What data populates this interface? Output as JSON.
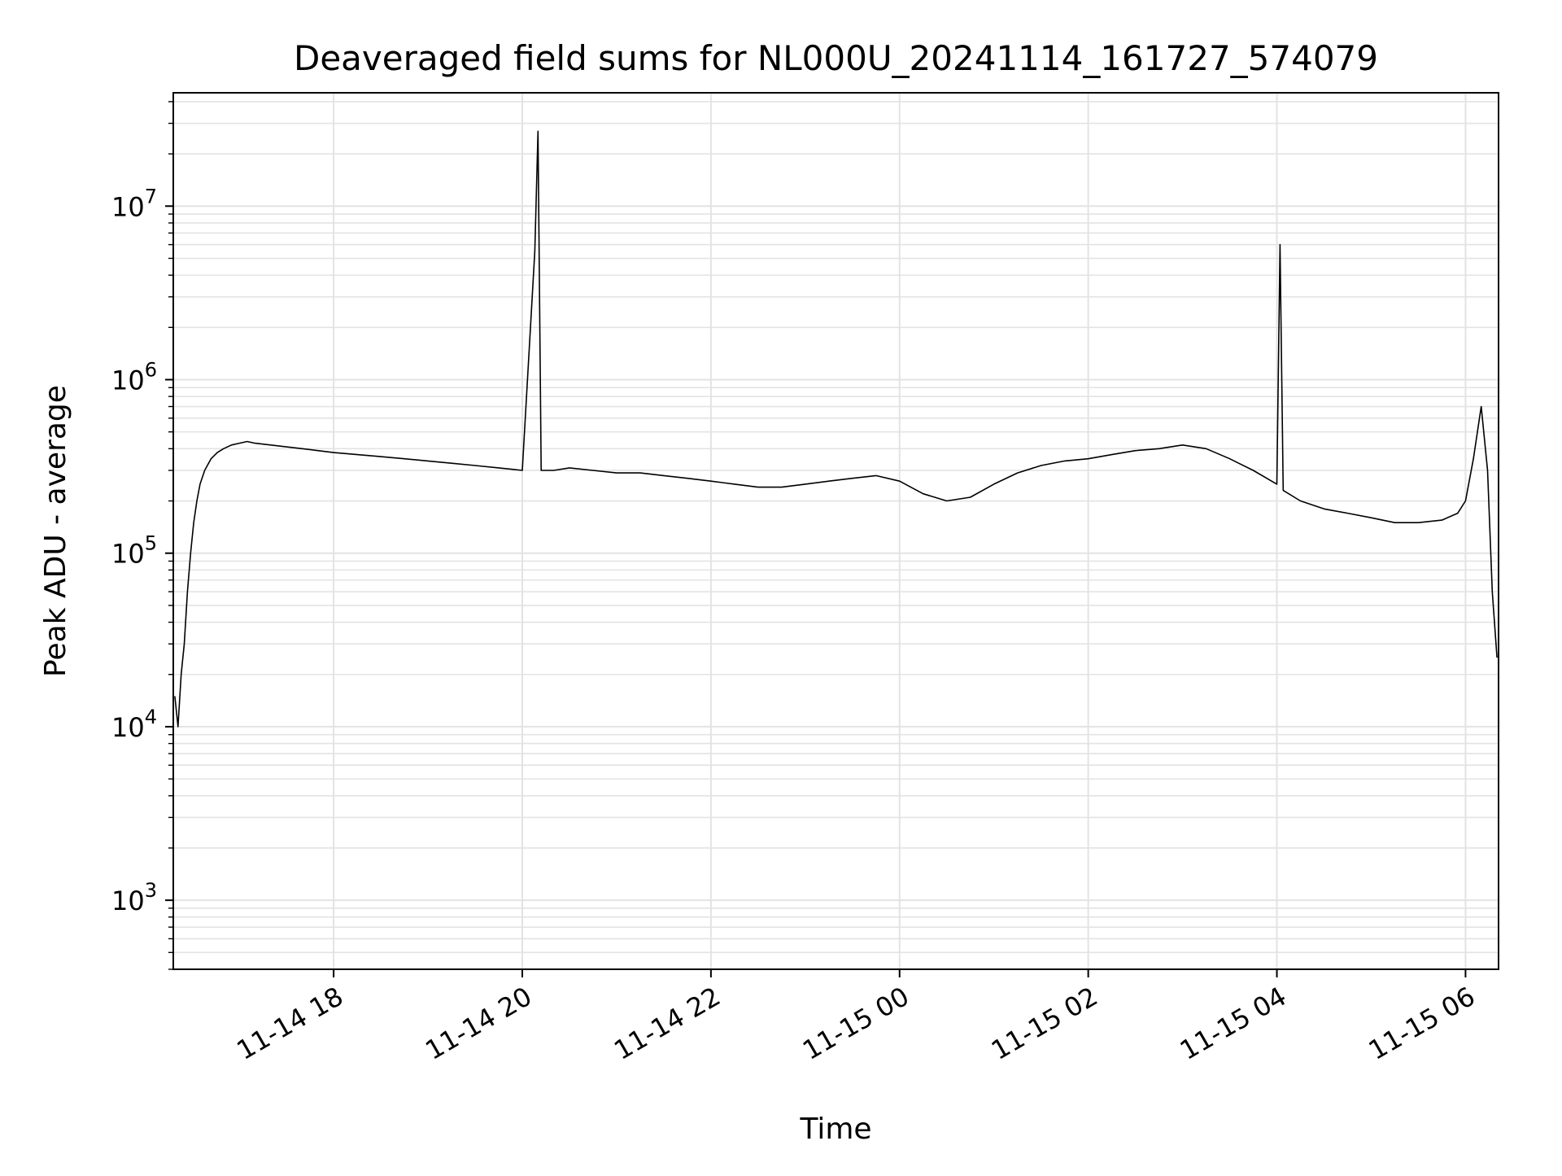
{
  "chart_data": {
    "type": "line",
    "title": "Deaveraged field sums for NL000U_20241114_161727_574079",
    "xlabel": "Time",
    "ylabel": "Peak ADU - average",
    "yscale": "log",
    "ylim": [
      400,
      45000000
    ],
    "xlim": [
      "2024-11-14 16:18",
      "2024-11-15 06:21"
    ],
    "grid": true,
    "x_ticks": [
      {
        "label": "11-14 18",
        "value": "2024-11-14 18:00"
      },
      {
        "label": "11-14 20",
        "value": "2024-11-14 20:00"
      },
      {
        "label": "11-14 22",
        "value": "2024-11-14 22:00"
      },
      {
        "label": "11-15 00",
        "value": "2024-11-15 00:00"
      },
      {
        "label": "11-15 02",
        "value": "2024-11-15 02:00"
      },
      {
        "label": "11-15 04",
        "value": "2024-11-15 04:00"
      },
      {
        "label": "11-15 06",
        "value": "2024-11-15 06:00"
      }
    ],
    "y_ticks": [
      {
        "base": "10",
        "exp": "3",
        "value": 1000
      },
      {
        "base": "10",
        "exp": "4",
        "value": 10000
      },
      {
        "base": "10",
        "exp": "5",
        "value": 100000
      },
      {
        "base": "10",
        "exp": "6",
        "value": 1000000
      },
      {
        "base": "10",
        "exp": "7",
        "value": 10000000
      }
    ],
    "series": [
      {
        "color": "#000000",
        "x": [
          "2024-11-14 16:19",
          "2024-11-14 16:21",
          "2024-11-14 16:23",
          "2024-11-14 16:25",
          "2024-11-14 16:27",
          "2024-11-14 16:29",
          "2024-11-14 16:31",
          "2024-11-14 16:33",
          "2024-11-14 16:35",
          "2024-11-14 16:38",
          "2024-11-14 16:42",
          "2024-11-14 16:46",
          "2024-11-14 16:50",
          "2024-11-14 16:55",
          "2024-11-14 17:00",
          "2024-11-14 17:05",
          "2024-11-14 17:10",
          "2024-11-14 17:20",
          "2024-11-14 17:30",
          "2024-11-14 17:40",
          "2024-11-14 17:50",
          "2024-11-14 18:00",
          "2024-11-14 18:15",
          "2024-11-14 18:30",
          "2024-11-14 18:45",
          "2024-11-14 19:00",
          "2024-11-14 19:15",
          "2024-11-14 19:30",
          "2024-11-14 19:45",
          "2024-11-14 20:00",
          "2024-11-14 20:08",
          "2024-11-14 20:10",
          "2024-11-14 20:12",
          "2024-11-14 20:20",
          "2024-11-14 20:30",
          "2024-11-14 20:45",
          "2024-11-14 21:00",
          "2024-11-14 21:15",
          "2024-11-14 21:30",
          "2024-11-14 21:45",
          "2024-11-14 22:00",
          "2024-11-14 22:15",
          "2024-11-14 22:30",
          "2024-11-14 22:45",
          "2024-11-14 23:00",
          "2024-11-14 23:15",
          "2024-11-14 23:30",
          "2024-11-14 23:45",
          "2024-11-15 00:00",
          "2024-11-15 00:15",
          "2024-11-15 00:30",
          "2024-11-15 00:45",
          "2024-11-15 01:00",
          "2024-11-15 01:15",
          "2024-11-15 01:30",
          "2024-11-15 01:45",
          "2024-11-15 02:00",
          "2024-11-15 02:15",
          "2024-11-15 02:30",
          "2024-11-15 02:45",
          "2024-11-15 03:00",
          "2024-11-15 03:15",
          "2024-11-15 03:30",
          "2024-11-15 03:45",
          "2024-11-15 04:00",
          "2024-11-15 04:02",
          "2024-11-15 04:04",
          "2024-11-15 04:15",
          "2024-11-15 04:30",
          "2024-11-15 04:45",
          "2024-11-15 05:00",
          "2024-11-15 05:15",
          "2024-11-15 05:30",
          "2024-11-15 05:45",
          "2024-11-15 05:55",
          "2024-11-15 06:00",
          "2024-11-15 06:05",
          "2024-11-15 06:10",
          "2024-11-15 06:14",
          "2024-11-15 06:17",
          "2024-11-15 06:20"
        ],
        "y": [
          15000,
          10000,
          20000,
          30000,
          60000,
          100000,
          150000,
          200000,
          250000,
          300000,
          350000,
          380000,
          400000,
          420000,
          430000,
          440000,
          430000,
          420000,
          410000,
          400000,
          390000,
          380000,
          370000,
          360000,
          350000,
          340000,
          330000,
          320000,
          310000,
          300000,
          5500000,
          27000000,
          300000,
          300000,
          310000,
          300000,
          290000,
          290000,
          280000,
          270000,
          260000,
          250000,
          240000,
          240000,
          250000,
          260000,
          270000,
          280000,
          260000,
          220000,
          200000,
          210000,
          250000,
          290000,
          320000,
          340000,
          350000,
          370000,
          390000,
          400000,
          420000,
          400000,
          350000,
          300000,
          250000,
          6000000,
          230000,
          200000,
          180000,
          170000,
          160000,
          150000,
          150000,
          155000,
          170000,
          200000,
          350000,
          700000,
          300000,
          60000,
          25000
        ]
      }
    ]
  }
}
